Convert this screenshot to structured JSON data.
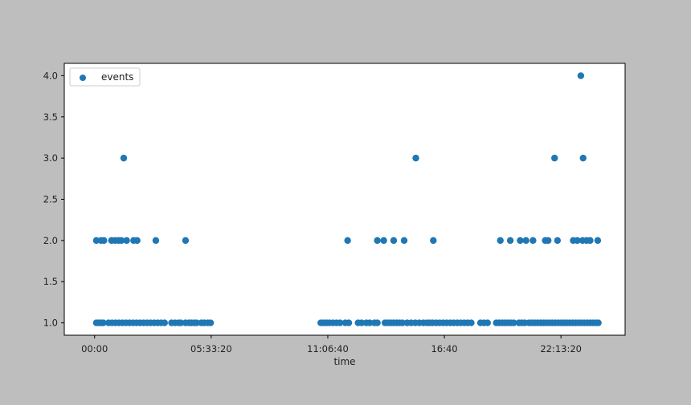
{
  "figure": {
    "background": "#bebebe",
    "plot_background": "#ffffff"
  },
  "chart_data": {
    "type": "scatter",
    "title": "",
    "xlabel": "time",
    "ylabel": "",
    "x_unit": "seconds",
    "xlim": [
      -5200,
      91000
    ],
    "ylim": [
      0.85,
      4.15
    ],
    "grid": false,
    "legend_position": "top-left",
    "x_ticks": [
      {
        "value": 0,
        "label": "00:00"
      },
      {
        "value": 20000,
        "label": "05:33:20"
      },
      {
        "value": 40000,
        "label": "11:06:40"
      },
      {
        "value": 60000,
        "label": "16:40"
      },
      {
        "value": 80000,
        "label": "22:13:20"
      }
    ],
    "y_ticks": [
      {
        "value": 1.0,
        "label": "1.0"
      },
      {
        "value": 1.5,
        "label": "1.5"
      },
      {
        "value": 2.0,
        "label": "2.0"
      },
      {
        "value": 2.5,
        "label": "2.5"
      },
      {
        "value": 3.0,
        "label": "3.0"
      },
      {
        "value": 3.5,
        "label": "3.5"
      },
      {
        "value": 4.0,
        "label": "4.0"
      }
    ],
    "series": [
      {
        "name": "events",
        "color": "#1f77b4",
        "points": [
          {
            "x": 300,
            "y": 1
          },
          {
            "x": 700,
            "y": 1
          },
          {
            "x": 1100,
            "y": 1
          },
          {
            "x": 1500,
            "y": 1
          },
          {
            "x": 2400,
            "y": 1
          },
          {
            "x": 3000,
            "y": 1
          },
          {
            "x": 3600,
            "y": 1
          },
          {
            "x": 4200,
            "y": 1
          },
          {
            "x": 4800,
            "y": 1
          },
          {
            "x": 5400,
            "y": 1
          },
          {
            "x": 6000,
            "y": 1
          },
          {
            "x": 6600,
            "y": 1
          },
          {
            "x": 7200,
            "y": 1
          },
          {
            "x": 7800,
            "y": 1
          },
          {
            "x": 8400,
            "y": 1
          },
          {
            "x": 9000,
            "y": 1
          },
          {
            "x": 9600,
            "y": 1
          },
          {
            "x": 10200,
            "y": 1
          },
          {
            "x": 10800,
            "y": 1
          },
          {
            "x": 11400,
            "y": 1
          },
          {
            "x": 12000,
            "y": 1
          },
          {
            "x": 13200,
            "y": 1
          },
          {
            "x": 13800,
            "y": 1
          },
          {
            "x": 14400,
            "y": 1
          },
          {
            "x": 14800,
            "y": 1
          },
          {
            "x": 15600,
            "y": 1
          },
          {
            "x": 16200,
            "y": 1
          },
          {
            "x": 16600,
            "y": 1
          },
          {
            "x": 17100,
            "y": 1
          },
          {
            "x": 17500,
            "y": 1
          },
          {
            "x": 18300,
            "y": 1
          },
          {
            "x": 18800,
            "y": 1
          },
          {
            "x": 19400,
            "y": 1
          },
          {
            "x": 19900,
            "y": 1
          },
          {
            "x": 38800,
            "y": 1
          },
          {
            "x": 39300,
            "y": 1
          },
          {
            "x": 39800,
            "y": 1
          },
          {
            "x": 40300,
            "y": 1
          },
          {
            "x": 40900,
            "y": 1
          },
          {
            "x": 41500,
            "y": 1
          },
          {
            "x": 42100,
            "y": 1
          },
          {
            "x": 43000,
            "y": 1
          },
          {
            "x": 43600,
            "y": 1
          },
          {
            "x": 45200,
            "y": 1
          },
          {
            "x": 45800,
            "y": 1
          },
          {
            "x": 46600,
            "y": 1
          },
          {
            "x": 47200,
            "y": 1
          },
          {
            "x": 48000,
            "y": 1
          },
          {
            "x": 48500,
            "y": 1
          },
          {
            "x": 49800,
            "y": 1
          },
          {
            "x": 50300,
            "y": 1
          },
          {
            "x": 50800,
            "y": 1
          },
          {
            "x": 51300,
            "y": 1
          },
          {
            "x": 51800,
            "y": 1
          },
          {
            "x": 52300,
            "y": 1
          },
          {
            "x": 52800,
            "y": 1
          },
          {
            "x": 53600,
            "y": 1
          },
          {
            "x": 54300,
            "y": 1
          },
          {
            "x": 55000,
            "y": 1
          },
          {
            "x": 55700,
            "y": 1
          },
          {
            "x": 56400,
            "y": 1
          },
          {
            "x": 57000,
            "y": 1
          },
          {
            "x": 57500,
            "y": 1
          },
          {
            "x": 58000,
            "y": 1
          },
          {
            "x": 58600,
            "y": 1
          },
          {
            "x": 59200,
            "y": 1
          },
          {
            "x": 59800,
            "y": 1
          },
          {
            "x": 60400,
            "y": 1
          },
          {
            "x": 61000,
            "y": 1
          },
          {
            "x": 61600,
            "y": 1
          },
          {
            "x": 62200,
            "y": 1
          },
          {
            "x": 62800,
            "y": 1
          },
          {
            "x": 63400,
            "y": 1
          },
          {
            "x": 64000,
            "y": 1
          },
          {
            "x": 64600,
            "y": 1
          },
          {
            "x": 66200,
            "y": 1
          },
          {
            "x": 66800,
            "y": 1
          },
          {
            "x": 67400,
            "y": 1
          },
          {
            "x": 68900,
            "y": 1
          },
          {
            "x": 69400,
            "y": 1
          },
          {
            "x": 69900,
            "y": 1
          },
          {
            "x": 70400,
            "y": 1
          },
          {
            "x": 70900,
            "y": 1
          },
          {
            "x": 71400,
            "y": 1
          },
          {
            "x": 71900,
            "y": 1
          },
          {
            "x": 72800,
            "y": 1
          },
          {
            "x": 73300,
            "y": 1
          },
          {
            "x": 73800,
            "y": 1
          },
          {
            "x": 74500,
            "y": 1
          },
          {
            "x": 75000,
            "y": 1
          },
          {
            "x": 75500,
            "y": 1
          },
          {
            "x": 76000,
            "y": 1
          },
          {
            "x": 76500,
            "y": 1
          },
          {
            "x": 77000,
            "y": 1
          },
          {
            "x": 77500,
            "y": 1
          },
          {
            "x": 78000,
            "y": 1
          },
          {
            "x": 78500,
            "y": 1
          },
          {
            "x": 79000,
            "y": 1
          },
          {
            "x": 79500,
            "y": 1
          },
          {
            "x": 80000,
            "y": 1
          },
          {
            "x": 80500,
            "y": 1
          },
          {
            "x": 81000,
            "y": 1
          },
          {
            "x": 81500,
            "y": 1
          },
          {
            "x": 82000,
            "y": 1
          },
          {
            "x": 82500,
            "y": 1
          },
          {
            "x": 83000,
            "y": 1
          },
          {
            "x": 83500,
            "y": 1
          },
          {
            "x": 84000,
            "y": 1
          },
          {
            "x": 84500,
            "y": 1
          },
          {
            "x": 85000,
            "y": 1
          },
          {
            "x": 85500,
            "y": 1
          },
          {
            "x": 86000,
            "y": 1
          },
          {
            "x": 86400,
            "y": 1
          },
          {
            "x": 300,
            "y": 2
          },
          {
            "x": 1100,
            "y": 2
          },
          {
            "x": 1600,
            "y": 2
          },
          {
            "x": 2900,
            "y": 2
          },
          {
            "x": 3500,
            "y": 2
          },
          {
            "x": 4100,
            "y": 2
          },
          {
            "x": 4600,
            "y": 2
          },
          {
            "x": 5500,
            "y": 2
          },
          {
            "x": 6700,
            "y": 2
          },
          {
            "x": 7300,
            "y": 2
          },
          {
            "x": 10500,
            "y": 2
          },
          {
            "x": 15600,
            "y": 2
          },
          {
            "x": 43400,
            "y": 2
          },
          {
            "x": 48500,
            "y": 2
          },
          {
            "x": 49600,
            "y": 2
          },
          {
            "x": 51300,
            "y": 2
          },
          {
            "x": 53100,
            "y": 2
          },
          {
            "x": 58100,
            "y": 2
          },
          {
            "x": 69600,
            "y": 2
          },
          {
            "x": 71300,
            "y": 2
          },
          {
            "x": 73000,
            "y": 2
          },
          {
            "x": 74000,
            "y": 2
          },
          {
            "x": 75200,
            "y": 2
          },
          {
            "x": 77300,
            "y": 2
          },
          {
            "x": 77800,
            "y": 2
          },
          {
            "x": 79400,
            "y": 2
          },
          {
            "x": 82100,
            "y": 2
          },
          {
            "x": 82800,
            "y": 2
          },
          {
            "x": 83700,
            "y": 2
          },
          {
            "x": 84400,
            "y": 2
          },
          {
            "x": 85000,
            "y": 2
          },
          {
            "x": 86300,
            "y": 2
          },
          {
            "x": 5000,
            "y": 3
          },
          {
            "x": 55100,
            "y": 3
          },
          {
            "x": 78900,
            "y": 3
          },
          {
            "x": 83800,
            "y": 3
          },
          {
            "x": 83400,
            "y": 4
          }
        ]
      }
    ]
  }
}
